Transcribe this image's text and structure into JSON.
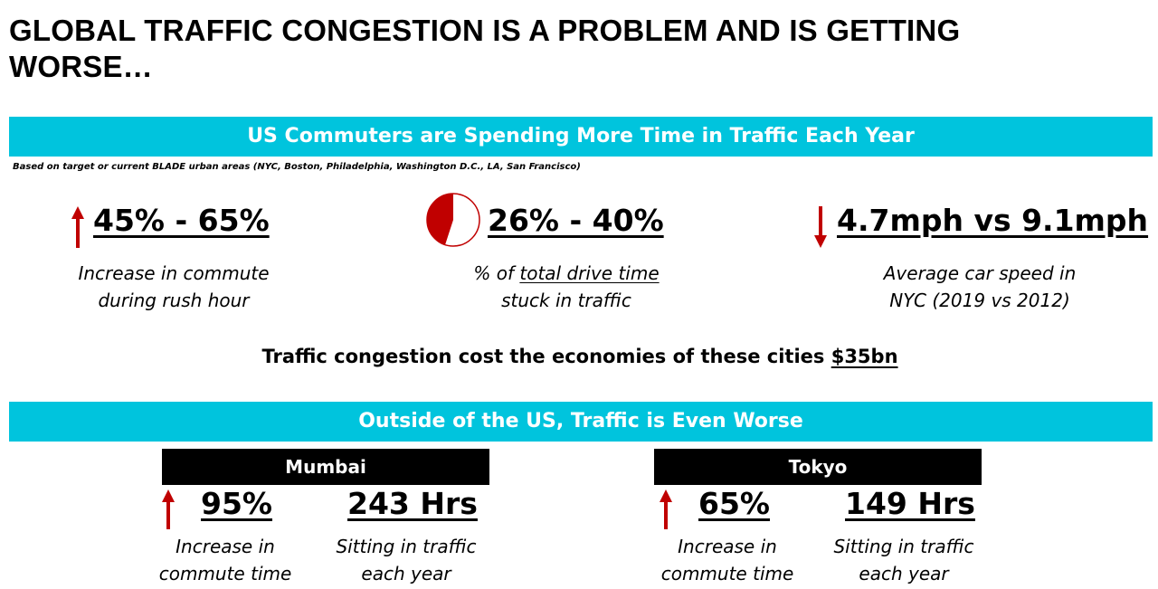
{
  "title": "GLOBAL TRAFFIC CONGESTION IS A PROBLEM AND IS GETTING WORSE…",
  "us_section": {
    "heading": "US Commuters are Spending More Time in Traffic Each Year",
    "footnote": "Based on target or current BLADE urban areas (NYC, Boston, Philadelphia, Washington D.C., LA, San Francisco)",
    "stats": [
      {
        "value": "45% - 65%",
        "desc_line1": "Increase in commute",
        "desc_line2": "during rush hour",
        "icon": "arrow-up-icon"
      },
      {
        "value": "26% - 40%",
        "desc_prefix": "% of ",
        "desc_underlined": "total drive time",
        "desc_line2": "stuck in traffic",
        "icon": "pie-icon",
        "pie_fraction": 0.45
      },
      {
        "value": "4.7mph vs 9.1mph",
        "desc_line1": "Average car speed in",
        "desc_line2": "NYC (2019 vs 2012)",
        "icon": "arrow-down-icon"
      }
    ],
    "cost_text": "Traffic congestion cost the economies of these cities ",
    "cost_value": "$35bn"
  },
  "global_section": {
    "heading": "Outside of the US, Traffic is Even Worse",
    "cities": [
      {
        "name": "Mumbai",
        "increase_value": "95%",
        "increase_line1": "Increase in",
        "increase_line2": "commute time",
        "hours_value": "243 Hrs",
        "hours_line1": "Sitting in traffic",
        "hours_line2": "each year"
      },
      {
        "name": "Tokyo",
        "increase_value": "65%",
        "increase_line1": "Increase in",
        "increase_line2": "commute time",
        "hours_value": "149 Hrs",
        "hours_line1": "Sitting in traffic",
        "hours_line2": "each year"
      }
    ]
  },
  "colors": {
    "band": "#00c4dd",
    "accent_red": "#c00000",
    "city_bar": "#000000"
  }
}
